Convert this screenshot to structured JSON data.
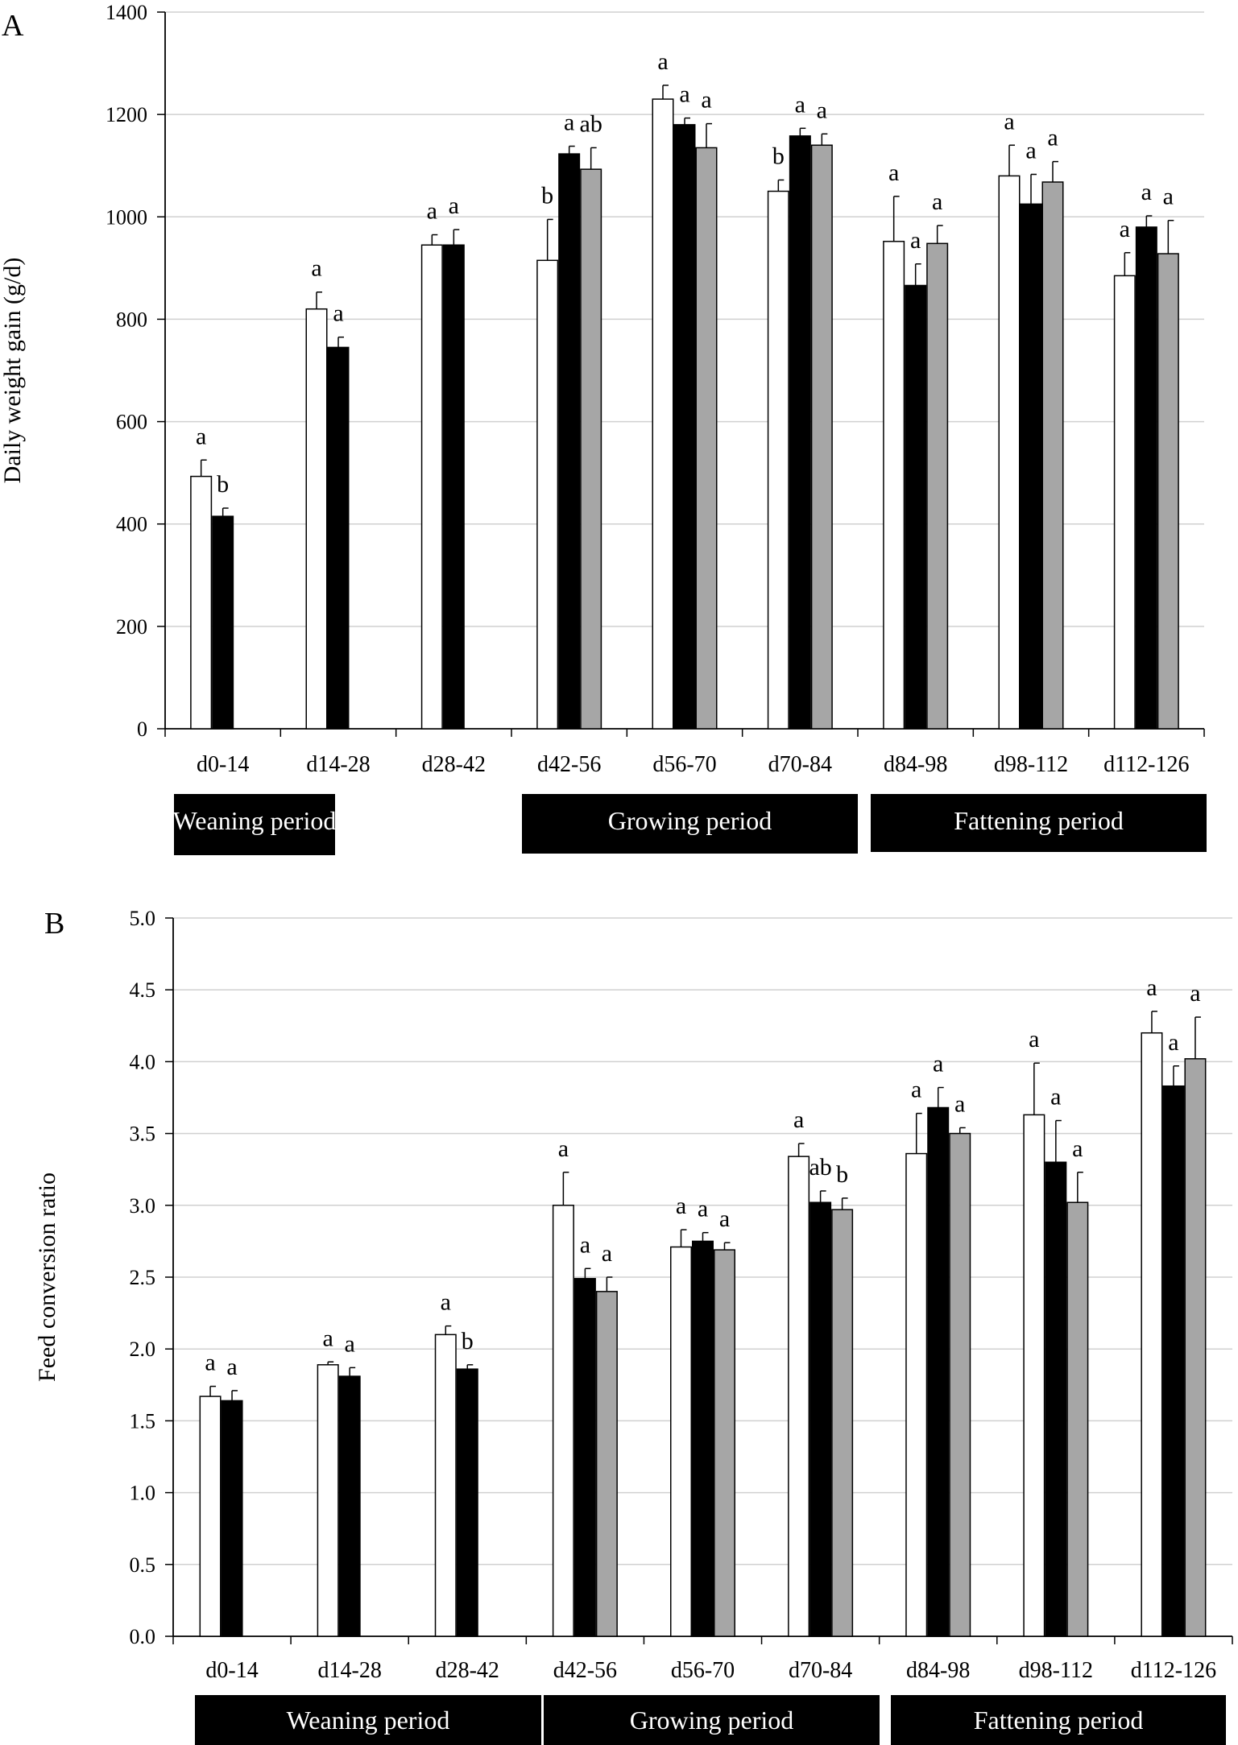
{
  "chart_data": [
    {
      "type": "bar",
      "panel_label": "A",
      "ylabel": "Daily weight gain (g/d)",
      "xlabel": "",
      "ylim": [
        0,
        1400
      ],
      "yticks": [
        "0",
        "200",
        "400",
        "600",
        "800",
        "1000",
        "1200",
        "1400"
      ],
      "ytick_values": [
        0,
        200,
        400,
        600,
        800,
        1000,
        1200,
        1400
      ],
      "grid": true,
      "categories": [
        "d0-14",
        "d14-28",
        "d28-42",
        "d42-56",
        "d56-70",
        "d70-84",
        "d84-98",
        "d98-112",
        "d112-126"
      ],
      "series": [
        {
          "name": "white",
          "color": "#ffffff",
          "values": [
            493,
            820,
            945,
            915,
            1230,
            1050,
            952,
            1080,
            885
          ],
          "errors": [
            32,
            33,
            20,
            80,
            27,
            22,
            88,
            60,
            45
          ],
          "letters": [
            "a",
            "a",
            "a",
            "b",
            "a",
            "b",
            "a",
            "a",
            "a"
          ]
        },
        {
          "name": "black",
          "color": "#000000",
          "values": [
            415,
            745,
            945,
            1123,
            1180,
            1158,
            866,
            1025,
            980
          ],
          "errors": [
            16,
            20,
            30,
            15,
            13,
            15,
            42,
            58,
            22
          ],
          "letters": [
            "b",
            "a",
            "a",
            "a",
            "a",
            "a",
            "a",
            "a",
            "a"
          ]
        },
        {
          "name": "gray",
          "color": "#a6a6a6",
          "values": [
            null,
            null,
            null,
            1093,
            1135,
            1140,
            948,
            1068,
            928
          ],
          "errors": [
            null,
            null,
            null,
            42,
            47,
            22,
            35,
            40,
            65
          ],
          "letters": [
            "",
            "",
            "",
            "ab",
            "a",
            "a",
            "a",
            "a",
            "a"
          ]
        }
      ],
      "periods": [
        "Weaning period",
        "Growing period",
        "Fattening period"
      ]
    },
    {
      "type": "bar",
      "panel_label": "B",
      "ylabel": "Feed conversion ratio",
      "xlabel": "",
      "ylim": [
        0,
        5.0
      ],
      "yticks": [
        "0.0",
        "0.5",
        "1.0",
        "1.5",
        "2.0",
        "2.5",
        "3.0",
        "3.5",
        "4.0",
        "4.5",
        "5.0"
      ],
      "ytick_values": [
        0,
        0.5,
        1.0,
        1.5,
        2.0,
        2.5,
        3.0,
        3.5,
        4.0,
        4.5,
        5.0
      ],
      "grid": true,
      "categories": [
        "d0-14",
        "d14-28",
        "d28-42",
        "d42-56",
        "d56-70",
        "d70-84",
        "d84-98",
        "d98-112",
        "d112-126"
      ],
      "series": [
        {
          "name": "white",
          "color": "#ffffff",
          "values": [
            1.67,
            1.89,
            2.1,
            3.0,
            2.71,
            3.34,
            3.36,
            3.63,
            4.2
          ],
          "errors": [
            0.07,
            0.02,
            0.06,
            0.23,
            0.12,
            0.09,
            0.28,
            0.36,
            0.15
          ],
          "letters": [
            "a",
            "a",
            "a",
            "a",
            "a",
            "a",
            "a",
            "a",
            "a"
          ]
        },
        {
          "name": "black",
          "color": "#000000",
          "values": [
            1.64,
            1.81,
            1.86,
            2.49,
            2.75,
            3.02,
            3.68,
            3.3,
            3.83
          ],
          "errors": [
            0.07,
            0.06,
            0.03,
            0.07,
            0.06,
            0.08,
            0.14,
            0.29,
            0.14
          ],
          "letters": [
            "a",
            "a",
            "b",
            "a",
            "a",
            "ab",
            "a",
            "a",
            "a"
          ]
        },
        {
          "name": "gray",
          "color": "#a6a6a6",
          "values": [
            null,
            null,
            null,
            2.4,
            2.69,
            2.97,
            3.5,
            3.02,
            4.02
          ],
          "errors": [
            null,
            null,
            null,
            0.1,
            0.05,
            0.08,
            0.04,
            0.21,
            0.29
          ],
          "letters": [
            "",
            "",
            "",
            "a",
            "a",
            "b",
            "a",
            "a",
            "a"
          ]
        }
      ],
      "periods": [
        "Weaning period",
        "Growing period",
        "Fattening period"
      ]
    }
  ]
}
